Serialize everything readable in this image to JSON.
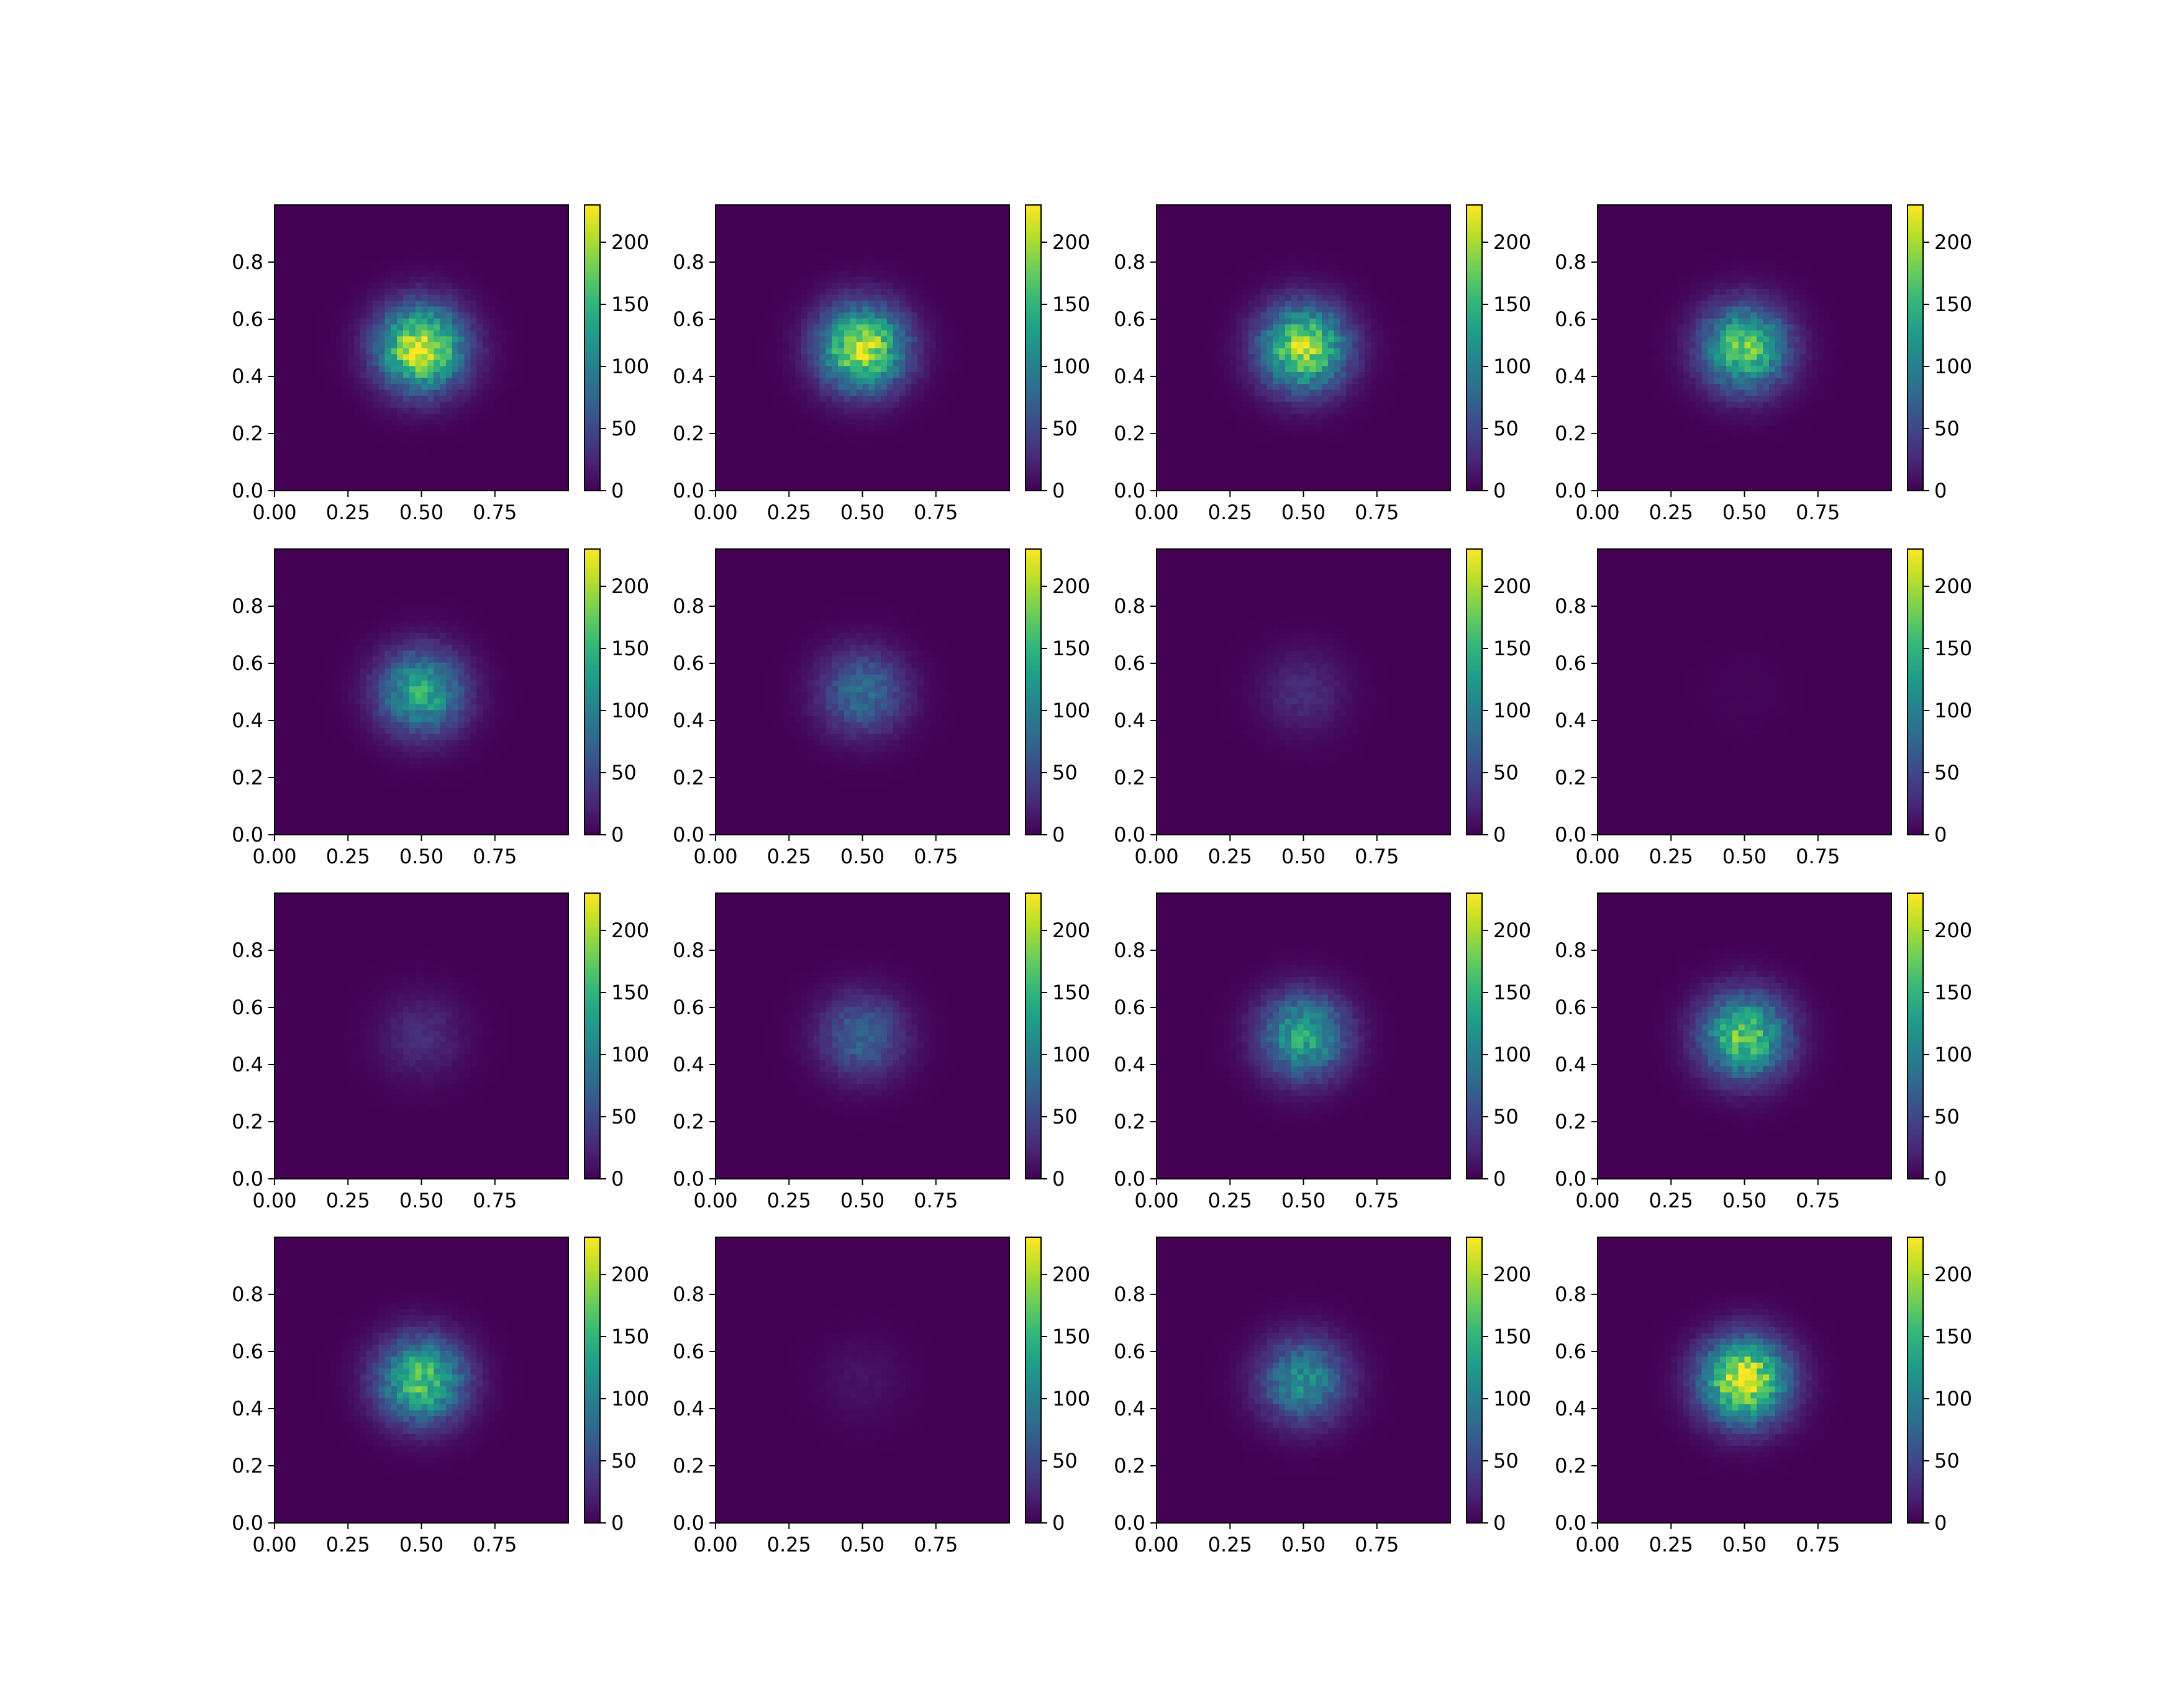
{
  "chart_data": {
    "type": "heatmap",
    "layout": {
      "rows": 4,
      "cols": 4
    },
    "colormap": "viridis",
    "colormap_stops": [
      "#440154",
      "#482878",
      "#3e4989",
      "#31688e",
      "#26828e",
      "#1f9e89",
      "#35b779",
      "#6ece58",
      "#b5de2b",
      "#fde725"
    ],
    "grid": false,
    "shared": {
      "xlim": [
        0,
        1
      ],
      "ylim": [
        0,
        1
      ],
      "xticks": [
        "0.00",
        "0.25",
        "0.50",
        "0.75"
      ],
      "xtick_values": [
        0.0,
        0.25,
        0.5,
        0.75
      ],
      "yticks": [
        "0.0",
        "0.2",
        "0.4",
        "0.6",
        "0.8"
      ],
      "ytick_values": [
        0.0,
        0.2,
        0.4,
        0.6,
        0.8
      ],
      "clim": [
        0,
        230
      ],
      "cbar_ticks": [
        "0",
        "50",
        "100",
        "150",
        "200"
      ],
      "cbar_tick_values": [
        0,
        50,
        100,
        150,
        200
      ],
      "grid_cells": 48,
      "blob_center": [
        0.5,
        0.5
      ],
      "blob_sigma": 0.1
    },
    "panels": [
      {
        "peak": 220
      },
      {
        "peak": 210
      },
      {
        "peak": 200
      },
      {
        "peak": 175
      },
      {
        "peak": 140
      },
      {
        "peak": 85
      },
      {
        "peak": 30
      },
      {
        "peak": 3
      },
      {
        "peak": 30
      },
      {
        "peak": 75
      },
      {
        "peak": 140
      },
      {
        "peak": 175
      },
      {
        "peak": 170
      },
      {
        "peak": 12
      },
      {
        "peak": 115
      },
      {
        "peak": 225
      }
    ]
  }
}
